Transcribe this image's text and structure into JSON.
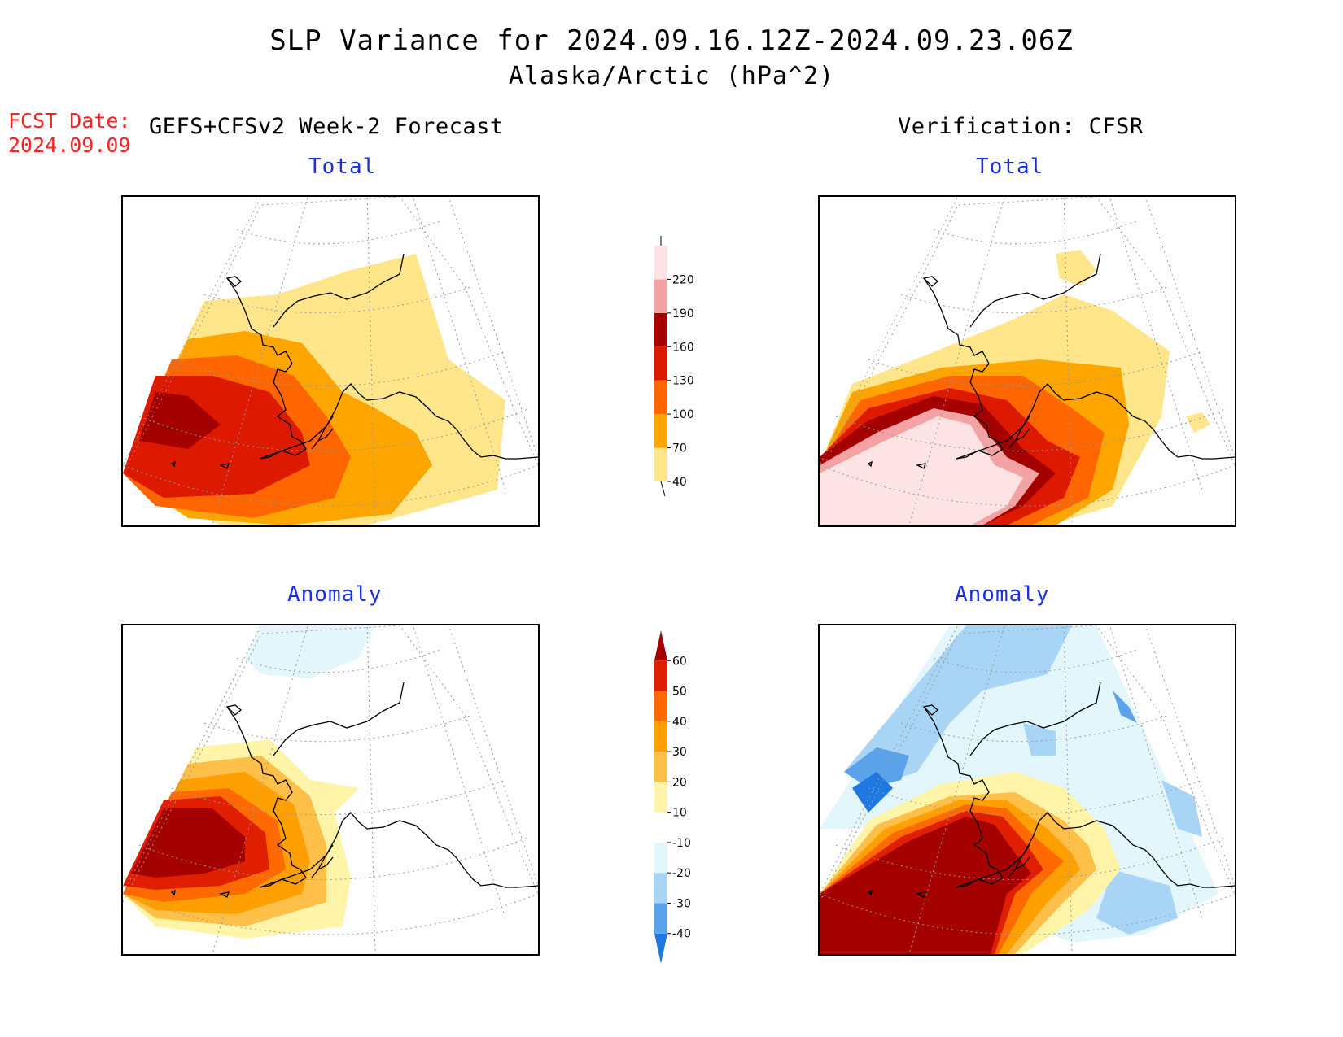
{
  "header": {
    "title": "SLP Variance for 2024.09.16.12Z-2024.09.23.06Z",
    "subtitle": "Alaska/Arctic (hPa^2)"
  },
  "fcst_date": {
    "label": "FCST Date:",
    "value": "2024.09.09"
  },
  "columns": {
    "left": "GEFS+CFSv2 Week-2 Forecast",
    "right": "Verification: CFSR"
  },
  "panels": {
    "forecast_total": "Total",
    "verification_total": "Total",
    "forecast_anomaly": "Anomaly",
    "verification_anomaly": "Anomaly"
  },
  "colorbar_total": {
    "levels": [
      "40",
      "70",
      "100",
      "130",
      "160",
      "190",
      "220"
    ],
    "colors": [
      "#ffe68a",
      "#ffa500",
      "#ff6600",
      "#dd1a00",
      "#a50000",
      "#f3a3a3",
      "#fde3e3"
    ]
  },
  "colorbar_anomaly": {
    "levels": [
      "-40",
      "-30",
      "-20",
      "-10",
      "10",
      "20",
      "30",
      "40",
      "50",
      "60"
    ],
    "colors": [
      "#1f78e0",
      "#5aa2ea",
      "#a8d4f6",
      "#e2f6fb",
      "#ffffff",
      "#fff4a8",
      "#ffc04a",
      "#ffa000",
      "#ff6a00",
      "#e01e00",
      "#a50000"
    ]
  },
  "map_colors": {
    "t40": "#ffe68a",
    "t70": "#ffa500",
    "t100": "#ff6600",
    "t130": "#dd1a00",
    "t160": "#a50000",
    "t190": "#f3a3a3",
    "t220": "#fde3e3",
    "a_m40": "#1f78e0",
    "a_m30": "#5aa2ea",
    "a_m20": "#a8d4f6",
    "a_m10": "#e2f6fb",
    "a10": "#fff4a8",
    "a20": "#ffc04a",
    "a30": "#ffa000",
    "a40": "#ff6a00",
    "a50": "#e01e00",
    "a60": "#a50000"
  }
}
